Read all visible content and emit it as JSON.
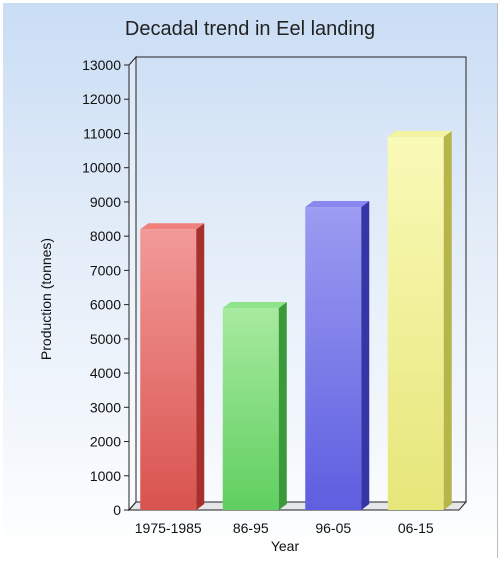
{
  "chart_data": {
    "type": "bar",
    "title": "Decadal trend in Eel landing",
    "xlabel": "Year",
    "ylabel": "Production (tonnes)",
    "categories": [
      "1975-1985",
      "86-95",
      "96-05",
      "06-15"
    ],
    "values": [
      8200,
      5900,
      8850,
      10900
    ],
    "ylim": [
      0,
      13000
    ],
    "yticks": [
      "0",
      "1000",
      "2000",
      "3000",
      "4000",
      "5000",
      "6000",
      "7000",
      "8000",
      "9000",
      "10000",
      "11000",
      "12000",
      "13000"
    ],
    "grid": false,
    "legend": "none",
    "colors": [
      {
        "front": "#d9534f",
        "light": "#f29a98",
        "side": "#a8302c",
        "top": "#f0807c"
      },
      {
        "front": "#5fcf5f",
        "light": "#a8eaa0",
        "side": "#3a9a3a",
        "top": "#8fe38a"
      },
      {
        "front": "#5e5ee0",
        "light": "#9c9cf2",
        "side": "#3535a8",
        "top": "#8888ee"
      },
      {
        "front": "#e6e67a",
        "light": "#fafab8",
        "side": "#b5b54a",
        "top": "#f3f3a0"
      }
    ]
  }
}
